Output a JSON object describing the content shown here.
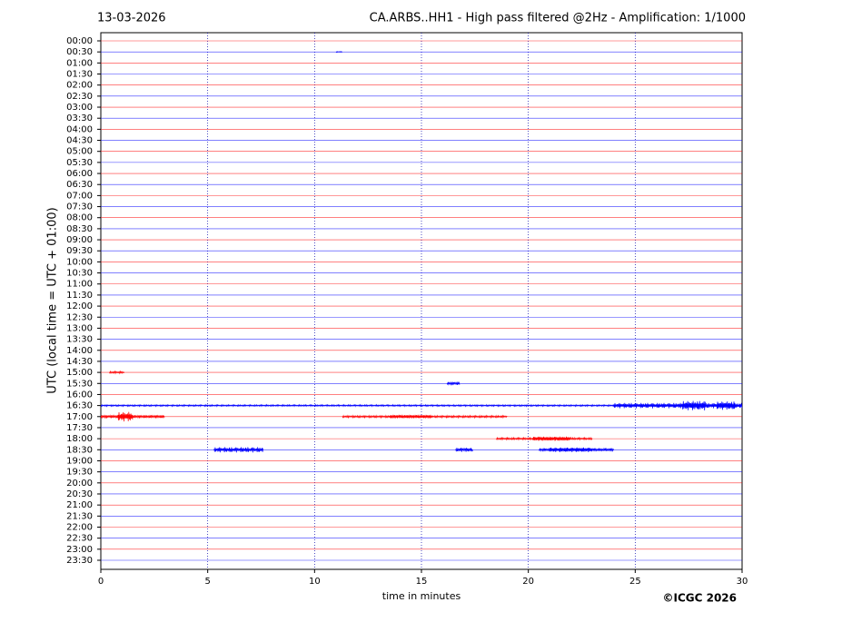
{
  "chart_data": {
    "type": "helicorder",
    "date": "13-03-2026",
    "title": "CA.ARBS..HH1 - High pass filtered @2Hz - Amplification: 1/1000",
    "y_label": "UTC (local time = UTC + 01:00)",
    "x_label": "time in minutes",
    "copyright": "©ICGC 2026",
    "categories": [
      "00:00",
      "00:30",
      "01:00",
      "01:30",
      "02:00",
      "02:30",
      "03:00",
      "03:30",
      "04:00",
      "04:30",
      "05:00",
      "05:30",
      "06:00",
      "06:30",
      "07:00",
      "07:30",
      "08:00",
      "08:30",
      "09:00",
      "09:30",
      "10:00",
      "10:30",
      "11:00",
      "11:30",
      "12:00",
      "12:30",
      "13:00",
      "13:30",
      "14:00",
      "14:30",
      "15:00",
      "15:30",
      "16:00",
      "16:30",
      "17:00",
      "17:30",
      "18:00",
      "18:30",
      "19:00",
      "19:30",
      "20:00",
      "20:30",
      "21:00",
      "21:30",
      "22:00",
      "22:30",
      "23:00",
      "23:30"
    ],
    "colors": [
      "#ff0000",
      "#0000ff"
    ],
    "xlim": [
      0,
      30
    ],
    "xticks": [
      0,
      5,
      10,
      15,
      20,
      25,
      30
    ],
    "grid": true,
    "bursts": [
      {
        "row": 1,
        "x": [
          11.0,
          11.3
        ],
        "amplitude": 0.05
      },
      {
        "row": 30,
        "x": [
          0.4,
          1.1
        ],
        "amplitude": 0.1
      },
      {
        "row": 31,
        "x": [
          16.2,
          16.8
        ],
        "amplitude": 0.15
      },
      {
        "row": 33,
        "x": [
          0,
          30
        ],
        "amplitude": 0.08
      },
      {
        "row": 33,
        "x": [
          24,
          30
        ],
        "amplitude": 0.25
      },
      {
        "row": 33,
        "x": [
          27.2,
          28.3
        ],
        "amplitude": 0.45
      },
      {
        "row": 33,
        "x": [
          28.8,
          29.7
        ],
        "amplitude": 0.4
      },
      {
        "row": 34,
        "x": [
          0,
          3
        ],
        "amplitude": 0.15
      },
      {
        "row": 34,
        "x": [
          0.8,
          1.5
        ],
        "amplitude": 0.45
      },
      {
        "row": 34,
        "x": [
          11.3,
          19
        ],
        "amplitude": 0.1
      },
      {
        "row": 34,
        "x": [
          13.5,
          15.5
        ],
        "amplitude": 0.15
      },
      {
        "row": 36,
        "x": [
          18.5,
          23
        ],
        "amplitude": 0.1
      },
      {
        "row": 36,
        "x": [
          20.2,
          22
        ],
        "amplitude": 0.2
      },
      {
        "row": 37,
        "x": [
          5.3,
          7.6
        ],
        "amplitude": 0.25
      },
      {
        "row": 37,
        "x": [
          16.6,
          17.4
        ],
        "amplitude": 0.2
      },
      {
        "row": 37,
        "x": [
          20.5,
          24
        ],
        "amplitude": 0.15
      },
      {
        "row": 37,
        "x": [
          21,
          23
        ],
        "amplitude": 0.22
      }
    ]
  }
}
